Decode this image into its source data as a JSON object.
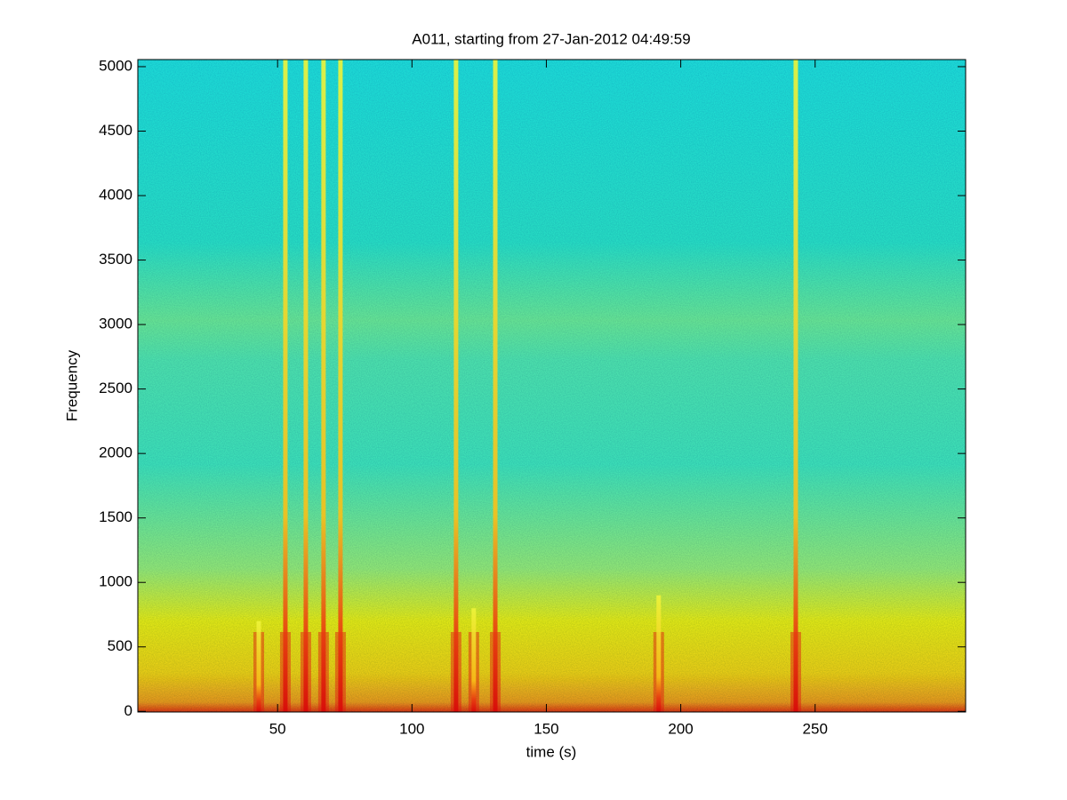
{
  "chart_data": {
    "type": "spectrogram",
    "title": "A011, starting from 27-Jan-2012 04:49:59",
    "x_label": "time (s)",
    "y_label": "Frequency",
    "x": [
      43,
      52.9,
      60.5,
      67.1,
      73.4,
      116.4,
      123,
      131,
      191.8,
      242.8
    ],
    "values": [
      700,
      5055,
      5055,
      5055,
      5055,
      5055,
      800,
      5055,
      900,
      5055
    ],
    "color": "#e01010",
    "xlim": [
      -2,
      306
    ],
    "xticks": [
      50,
      100,
      150,
      200,
      250
    ],
    "ylim": [
      -5,
      5055
    ],
    "yticks": [
      0,
      500,
      1000,
      1500,
      2000,
      2500,
      3000,
      3500,
      4000,
      4500,
      5000
    ]
  }
}
